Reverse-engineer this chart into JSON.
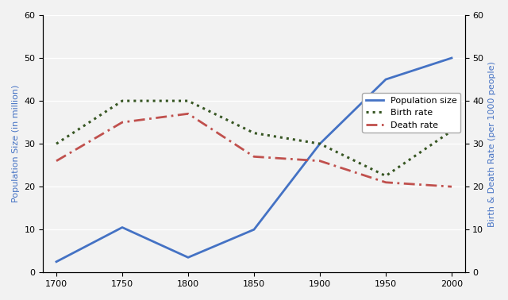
{
  "years": [
    1700,
    1750,
    1800,
    1850,
    1900,
    1950,
    2000
  ],
  "population": [
    2.5,
    10.5,
    3.5,
    10,
    30,
    45,
    50
  ],
  "birth_rate": [
    30,
    40,
    40,
    32.5,
    30,
    22.5,
    33
  ],
  "death_rate": [
    26,
    35,
    37,
    27,
    26,
    21,
    20
  ],
  "pop_color": "#4472c4",
  "birth_color": "#375623",
  "death_color": "#c0504d",
  "ylim_left": [
    0,
    60
  ],
  "ylim_right": [
    0,
    60
  ],
  "yticks": [
    0,
    10,
    20,
    30,
    40,
    50,
    60
  ],
  "xticks": [
    1700,
    1750,
    1800,
    1850,
    1900,
    1950,
    2000
  ],
  "ylabel_left": "Population Size (in million)",
  "ylabel_right": "Birth & Death Rate (per 1000 people)",
  "bg_color": "#f2f2f2",
  "legend_labels": [
    "Population size",
    "Birth rate",
    "Death rate"
  ]
}
